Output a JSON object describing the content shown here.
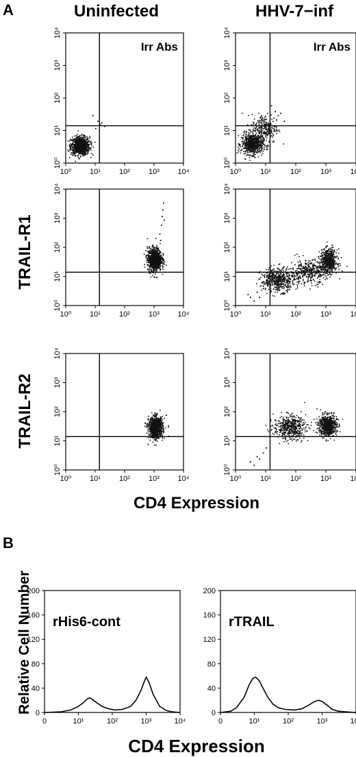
{
  "panel_a": {
    "label": "A",
    "col_labels": [
      "Uninfected",
      "HHV-7−inf"
    ],
    "row_labels": [
      "",
      "TRAIL-R1",
      "TRAIL-R2"
    ],
    "xlabel": "CD4 Expression"
  },
  "panel_b": {
    "label": "B",
    "ylabel": "Relative Cell Number",
    "xlabel": "CD4 Expression"
  },
  "chart_data": [
    {
      "type": "scatter",
      "id": "a-un-irr",
      "title": "Irr Abs",
      "scale": "log",
      "xlim": [
        1,
        10000
      ],
      "ylim": [
        1,
        10000
      ],
      "x_ticks": [
        "10⁰",
        "10¹",
        "10²",
        "10³",
        "10⁴"
      ],
      "y_ticks": [
        "10⁰",
        "10¹",
        "10²",
        "10³",
        "10⁴"
      ],
      "quadrant_gate": [
        14,
        14
      ],
      "clusters": [
        {
          "center": [
            3.0,
            3.5
          ],
          "spread": [
            0.16,
            0.14
          ],
          "n": 900
        }
      ],
      "points": [
        [
          12,
          20
        ],
        [
          14,
          16
        ],
        [
          16,
          18
        ],
        [
          8,
          30
        ],
        [
          20,
          14
        ],
        [
          10,
          12
        ]
      ]
    },
    {
      "type": "scatter",
      "id": "a-inf-irr",
      "title": "Irr Abs",
      "scale": "log",
      "xlim": [
        1,
        10000
      ],
      "ylim": [
        1,
        10000
      ],
      "x_ticks": [
        "10⁰",
        "10¹",
        "10²",
        "10³",
        "10⁴"
      ],
      "y_ticks": [
        "10⁰",
        "10¹",
        "10²",
        "10³",
        "10⁴"
      ],
      "quadrant_gate": [
        14,
        14
      ],
      "clusters": [
        {
          "center": [
            3.5,
            4.0
          ],
          "spread": [
            0.18,
            0.16
          ],
          "n": 700
        },
        {
          "center": [
            9.0,
            12.0
          ],
          "spread": [
            0.22,
            0.22
          ],
          "n": 250
        }
      ],
      "points": [
        [
          20,
          40
        ],
        [
          25,
          30
        ],
        [
          30,
          35
        ],
        [
          18,
          25
        ],
        [
          40,
          20
        ],
        [
          15,
          60
        ],
        [
          22,
          22
        ]
      ]
    },
    {
      "type": "scatter",
      "id": "a-un-r1",
      "title": "",
      "scale": "log",
      "xlim": [
        1,
        10000
      ],
      "ylim": [
        1,
        10000
      ],
      "x_ticks": [
        "10⁰",
        "10¹",
        "10²",
        "10³",
        "10⁴"
      ],
      "y_ticks": [
        "10⁰",
        "10¹",
        "10²",
        "10³",
        "10⁴"
      ],
      "quadrant_gate": [
        14,
        14
      ],
      "clusters": [
        {
          "center": [
            1000,
            40
          ],
          "spread": [
            0.12,
            0.2
          ],
          "n": 900
        }
      ],
      "points": [
        [
          1500,
          300
        ],
        [
          1700,
          600
        ],
        [
          1800,
          1200
        ],
        [
          1900,
          2000
        ],
        [
          2000,
          3500
        ],
        [
          1600,
          180
        ],
        [
          2100,
          900
        ]
      ]
    },
    {
      "type": "scatter",
      "id": "a-inf-r1",
      "title": "",
      "scale": "log",
      "xlim": [
        1,
        10000
      ],
      "ylim": [
        1,
        10000
      ],
      "x_ticks": [
        "10⁰",
        "10¹",
        "10²",
        "10³",
        "10⁴"
      ],
      "y_ticks": [
        "10⁰",
        "10¹",
        "10²",
        "10³",
        "10⁴"
      ],
      "quadrant_gate": [
        14,
        14
      ],
      "clusters": [
        {
          "center": [
            1200,
            35
          ],
          "spread": [
            0.14,
            0.2
          ],
          "n": 600
        },
        {
          "center": [
            25,
            8
          ],
          "spread": [
            0.28,
            0.2
          ],
          "n": 500
        },
        {
          "center": [
            250,
            15
          ],
          "spread": [
            0.3,
            0.2
          ],
          "n": 350
        }
      ],
      "points": [
        [
          3,
          2
        ],
        [
          5,
          3
        ],
        [
          4,
          1.5
        ],
        [
          2.5,
          2.5
        ],
        [
          8,
          4
        ],
        [
          6,
          2
        ]
      ]
    },
    {
      "type": "scatter",
      "id": "a-un-r2",
      "title": "",
      "scale": "log",
      "xlim": [
        1,
        10000
      ],
      "ylim": [
        1,
        10000
      ],
      "x_ticks": [
        "10⁰",
        "10¹",
        "10²",
        "10³",
        "10⁴"
      ],
      "y_ticks": [
        "10⁰",
        "10¹",
        "10²",
        "10³",
        "10⁴"
      ],
      "quadrant_gate": [
        14,
        14
      ],
      "clusters": [
        {
          "center": [
            1100,
            30
          ],
          "spread": [
            0.12,
            0.18
          ],
          "n": 900
        }
      ],
      "points": [
        [
          2500,
          80
        ],
        [
          600,
          8
        ],
        [
          3000,
          15
        ]
      ]
    },
    {
      "type": "scatter",
      "id": "a-inf-r2",
      "title": "",
      "scale": "log",
      "xlim": [
        1,
        10000
      ],
      "ylim": [
        1,
        10000
      ],
      "x_ticks": [
        "10⁰",
        "10¹",
        "10²",
        "10³",
        "10⁴"
      ],
      "y_ticks": [
        "10⁰",
        "10¹",
        "10²",
        "10³",
        "10⁴"
      ],
      "quadrant_gate": [
        14,
        14
      ],
      "clusters": [
        {
          "center": [
            1100,
            35
          ],
          "spread": [
            0.15,
            0.18
          ],
          "n": 650
        },
        {
          "center": [
            60,
            30
          ],
          "spread": [
            0.26,
            0.2
          ],
          "n": 500
        }
      ],
      "points": [
        [
          3,
          2
        ],
        [
          5,
          3
        ],
        [
          4,
          1.5
        ],
        [
          8,
          4
        ],
        [
          6,
          2.5
        ],
        [
          10,
          6
        ]
      ]
    },
    {
      "type": "line",
      "id": "b-his6",
      "title": "rHis6-cont",
      "scale": "log-x",
      "xlim": [
        1,
        10000
      ],
      "ylim": [
        0,
        200
      ],
      "x_ticks": [
        "0",
        "10¹",
        "10²",
        "10³",
        "10⁴"
      ],
      "y_ticks": [
        "0",
        "40",
        "80",
        "120",
        "160",
        "200"
      ],
      "x": [
        1,
        3,
        6,
        10,
        14,
        18,
        22,
        28,
        35,
        50,
        80,
        120,
        200,
        350,
        500,
        700,
        900,
        1000,
        1200,
        1600,
        2500,
        4000,
        6000,
        10000
      ],
      "y": [
        0,
        1,
        4,
        10,
        16,
        22,
        24,
        20,
        16,
        10,
        6,
        4,
        5,
        10,
        20,
        36,
        52,
        58,
        50,
        30,
        10,
        3,
        1,
        0
      ]
    },
    {
      "type": "line",
      "id": "b-rtrail",
      "title": "rTRAIL",
      "scale": "log-x",
      "xlim": [
        1,
        10000
      ],
      "ylim": [
        0,
        200
      ],
      "x_ticks": [
        "0",
        "10¹",
        "10²",
        "10³",
        "10⁴"
      ],
      "y_ticks": [
        "0",
        "40",
        "80",
        "120",
        "160",
        "200"
      ],
      "x": [
        1,
        2,
        3,
        5,
        7,
        9,
        11,
        14,
        18,
        25,
        35,
        50,
        80,
        150,
        250,
        400,
        600,
        800,
        1000,
        1400,
        2000,
        3000,
        5000,
        10000
      ],
      "y": [
        0,
        2,
        8,
        25,
        45,
        56,
        58,
        52,
        40,
        25,
        14,
        8,
        5,
        4,
        6,
        12,
        18,
        20,
        18,
        12,
        5,
        2,
        1,
        0
      ]
    }
  ]
}
